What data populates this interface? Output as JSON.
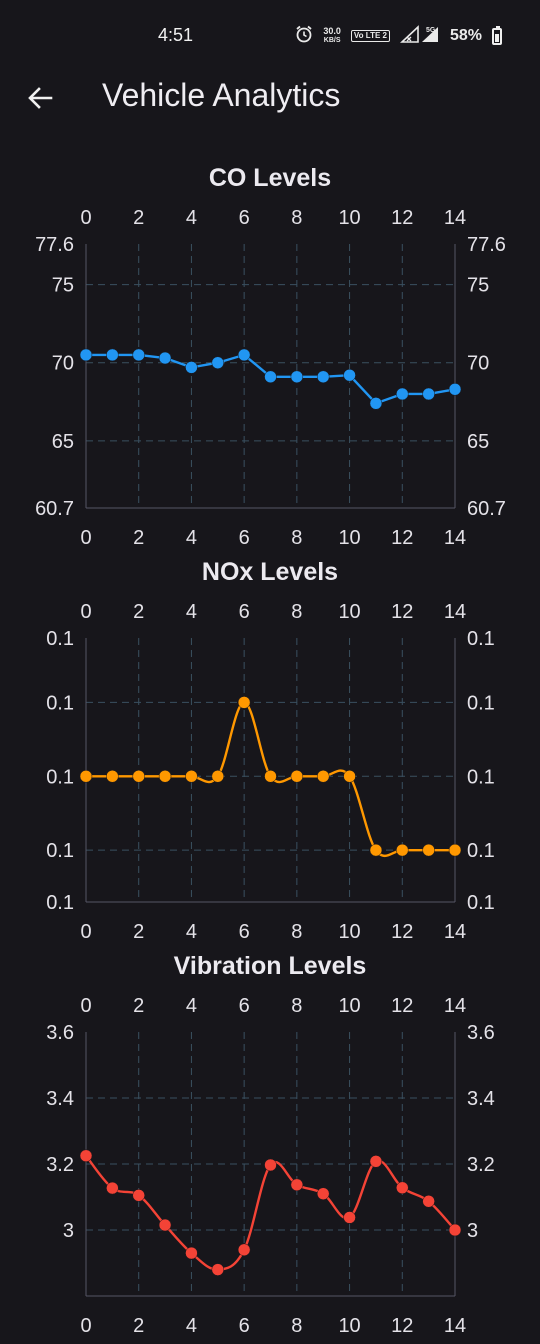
{
  "status_bar": {
    "time": "4:51",
    "net_speed_value": "30.0",
    "net_speed_unit": "KB/S",
    "volte_label": "Vo LTE 2",
    "signal_label": "5G",
    "battery_percent": "58%",
    "battery_level": 0.58,
    "icons": [
      "alarm-clock-icon",
      "network-speed-icon",
      "volte-icon",
      "signal-icon",
      "battery-icon"
    ]
  },
  "app_bar": {
    "title": "Vehicle Analytics",
    "back_icon": "arrow-left-icon"
  },
  "colors": {
    "background": "#17161b",
    "co_series": "#2196f3",
    "nox_series": "#ff9800",
    "vibration_series": "#f44336",
    "grid": "#3a5060"
  },
  "chart_data": [
    {
      "type": "line",
      "title": "CO Levels",
      "x": [
        0,
        1,
        2,
        3,
        4,
        5,
        6,
        7,
        8,
        9,
        10,
        11,
        12,
        13,
        14
      ],
      "series": [
        {
          "values": [
            70.5,
            70.5,
            70.5,
            70.3,
            69.7,
            70.0,
            70.5,
            69.1,
            69.1,
            69.1,
            69.2,
            67.4,
            68.0,
            68.0,
            68.3
          ]
        }
      ],
      "ylim": [
        60.7,
        77.6
      ],
      "y_tick_labels": [
        {
          "value": 77.6,
          "label": "77.6"
        },
        {
          "value": 75,
          "label": "75"
        },
        {
          "value": 70,
          "label": "70"
        },
        {
          "value": 65,
          "label": "65"
        },
        {
          "value": 60.7,
          "label": "60.7"
        }
      ],
      "y_gridlines": [
        75,
        70,
        65
      ],
      "x_tick_labels": [
        "0",
        "2",
        "4",
        "6",
        "8",
        "10",
        "12",
        "14"
      ],
      "x_ticks": [
        0,
        2,
        4,
        6,
        8,
        10,
        12,
        14
      ],
      "x_gridlines": [
        2,
        4,
        6,
        8,
        10,
        12
      ],
      "xlim": [
        0,
        14
      ],
      "color": "#2196f3",
      "curved": false,
      "grid": true
    },
    {
      "type": "line",
      "title": "NOx Levels",
      "x": [
        0,
        1,
        2,
        3,
        4,
        5,
        6,
        7,
        8,
        9,
        10,
        11,
        12,
        13,
        14
      ],
      "series": [
        {
          "values": [
            0.1,
            0.1,
            0.1,
            0.1,
            0.1,
            0.1,
            0.1047,
            0.1,
            0.1,
            0.1,
            0.1,
            0.0953,
            0.0953,
            0.0953,
            0.0953
          ]
        }
      ],
      "ylim": [
        0.092,
        0.1088
      ],
      "y_tick_labels": [
        {
          "value": 0.1088,
          "label": "0.1"
        },
        {
          "value": 0.1047,
          "label": "0.1"
        },
        {
          "value": 0.1,
          "label": "0.1"
        },
        {
          "value": 0.0953,
          "label": "0.1"
        },
        {
          "value": 0.092,
          "label": "0.1"
        }
      ],
      "y_gridlines": [
        0.1047,
        0.1,
        0.0953
      ],
      "x_tick_labels": [
        "0",
        "2",
        "4",
        "6",
        "8",
        "10",
        "12",
        "14"
      ],
      "x_ticks": [
        0,
        2,
        4,
        6,
        8,
        10,
        12,
        14
      ],
      "x_gridlines": [
        2,
        4,
        6,
        8,
        10,
        12
      ],
      "xlim": [
        0,
        14
      ],
      "color": "#ff9800",
      "curved": true,
      "grid": true
    },
    {
      "type": "line",
      "title": "Vibration Levels",
      "x": [
        0,
        1,
        2,
        3,
        4,
        5,
        6,
        7,
        8,
        9,
        10,
        11,
        12,
        13,
        14
      ],
      "series": [
        {
          "values": [
            3.225,
            3.127,
            3.105,
            3.015,
            2.93,
            2.88,
            2.94,
            3.197,
            3.137,
            3.11,
            3.038,
            3.208,
            3.128,
            3.087,
            3.0
          ]
        }
      ],
      "ylim": [
        2.8,
        3.6
      ],
      "y_tick_labels": [
        {
          "value": 3.6,
          "label": "3.6"
        },
        {
          "value": 3.4,
          "label": "3.4"
        },
        {
          "value": 3.2,
          "label": "3.2"
        },
        {
          "value": 3.0,
          "label": "3"
        }
      ],
      "y_gridlines": [
        3.4,
        3.2,
        3.0
      ],
      "x_tick_labels": [
        "0",
        "2",
        "4",
        "6",
        "8",
        "10",
        "12",
        "14"
      ],
      "x_ticks": [
        0,
        2,
        4,
        6,
        8,
        10,
        12,
        14
      ],
      "x_gridlines": [
        2,
        4,
        6,
        8,
        10,
        12
      ],
      "xlim": [
        0,
        14
      ],
      "color": "#f44336",
      "curved": true,
      "grid": true
    }
  ]
}
